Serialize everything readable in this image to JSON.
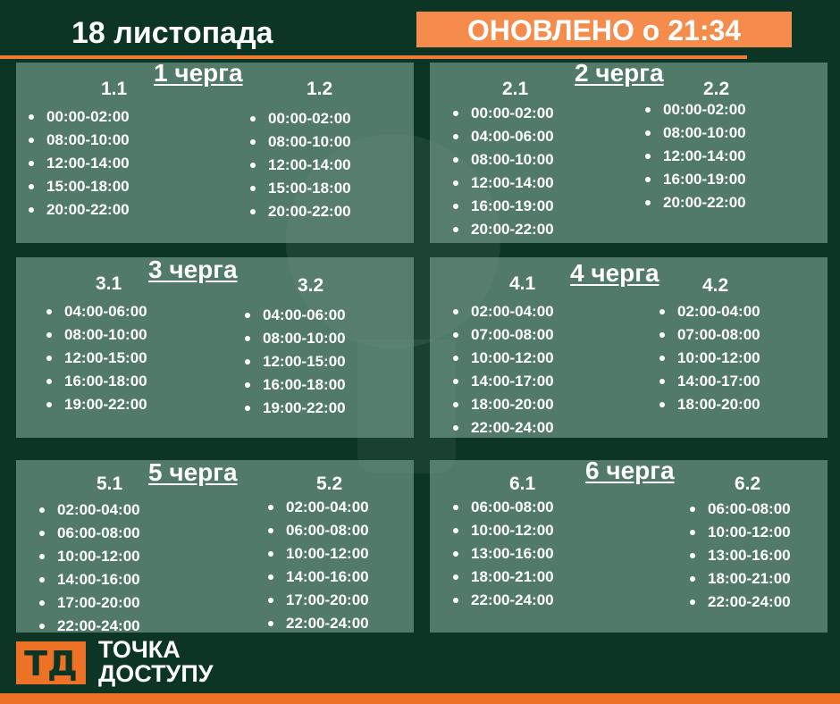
{
  "header": {
    "date": "18 листопада",
    "updated": "ОНОВЛЕНО о 21:34"
  },
  "colors": {
    "background": "#0c3526",
    "accent": "#f58c4c",
    "bar": "#ee7226",
    "panel": "#6e9684"
  },
  "queues": [
    {
      "title": "1 черга",
      "sub": [
        {
          "label": "1.1",
          "times": [
            "00:00-02:00",
            "08:00-10:00",
            "12:00-14:00",
            "15:00-18:00",
            "20:00-22:00"
          ]
        },
        {
          "label": "1.2",
          "times": [
            "00:00-02:00",
            "08:00-10:00",
            "12:00-14:00",
            "15:00-18:00",
            "20:00-22:00"
          ]
        }
      ]
    },
    {
      "title": "2 черга",
      "sub": [
        {
          "label": "2.1",
          "times": [
            "00:00-02:00",
            "04:00-06:00",
            "08:00-10:00",
            "12:00-14:00",
            "16:00-19:00",
            "20:00-22:00"
          ]
        },
        {
          "label": "2.2",
          "times": [
            "00:00-02:00",
            "08:00-10:00",
            "12:00-14:00",
            "16:00-19:00",
            "20:00-22:00"
          ]
        }
      ]
    },
    {
      "title": "3 черга",
      "sub": [
        {
          "label": "3.1",
          "times": [
            "04:00-06:00",
            "08:00-10:00",
            "12:00-15:00",
            "16:00-18:00",
            "19:00-22:00"
          ]
        },
        {
          "label": "3.2",
          "times": [
            "04:00-06:00",
            "08:00-10:00",
            "12:00-15:00",
            "16:00-18:00",
            "19:00-22:00"
          ]
        }
      ]
    },
    {
      "title": "4 черга",
      "sub": [
        {
          "label": "4.1",
          "times": [
            "02:00-04:00",
            "07:00-08:00",
            "10:00-12:00",
            "14:00-17:00",
            "18:00-20:00",
            "22:00-24:00"
          ]
        },
        {
          "label": "4.2",
          "times": [
            "02:00-04:00",
            "07:00-08:00",
            "10:00-12:00",
            "14:00-17:00",
            "18:00-20:00"
          ]
        }
      ]
    },
    {
      "title": "5 черга",
      "sub": [
        {
          "label": "5.1",
          "times": [
            "02:00-04:00",
            "06:00-08:00",
            "10:00-12:00",
            "14:00-16:00",
            "17:00-20:00",
            "22:00-24:00"
          ]
        },
        {
          "label": "5.2",
          "times": [
            "02:00-04:00",
            "06:00-08:00",
            "10:00-12:00",
            "14:00-16:00",
            "17:00-20:00",
            "22:00-24:00"
          ]
        }
      ]
    },
    {
      "title": "6 черга",
      "sub": [
        {
          "label": "6.1",
          "times": [
            "06:00-08:00",
            "10:00-12:00",
            "13:00-16:00",
            "18:00-21:00",
            "22:00-24:00"
          ]
        },
        {
          "label": "6.2",
          "times": [
            "06:00-08:00",
            "10:00-12:00",
            "13:00-16:00",
            "18:00-21:00",
            "22:00-24:00"
          ]
        }
      ]
    }
  ],
  "logo": {
    "mark": "ТД",
    "line1": "ТОЧКА",
    "line2": "ДОСТУПУ"
  }
}
